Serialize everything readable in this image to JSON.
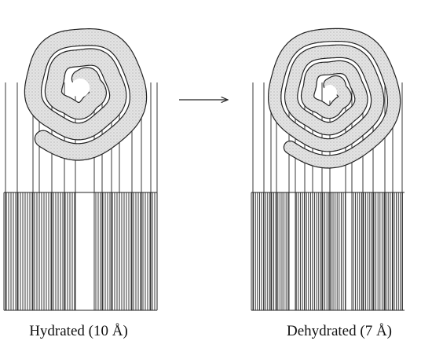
{
  "left_label": "Hydrated (10 Å)",
  "right_label": "Dehydrated (7 Å)"
}
